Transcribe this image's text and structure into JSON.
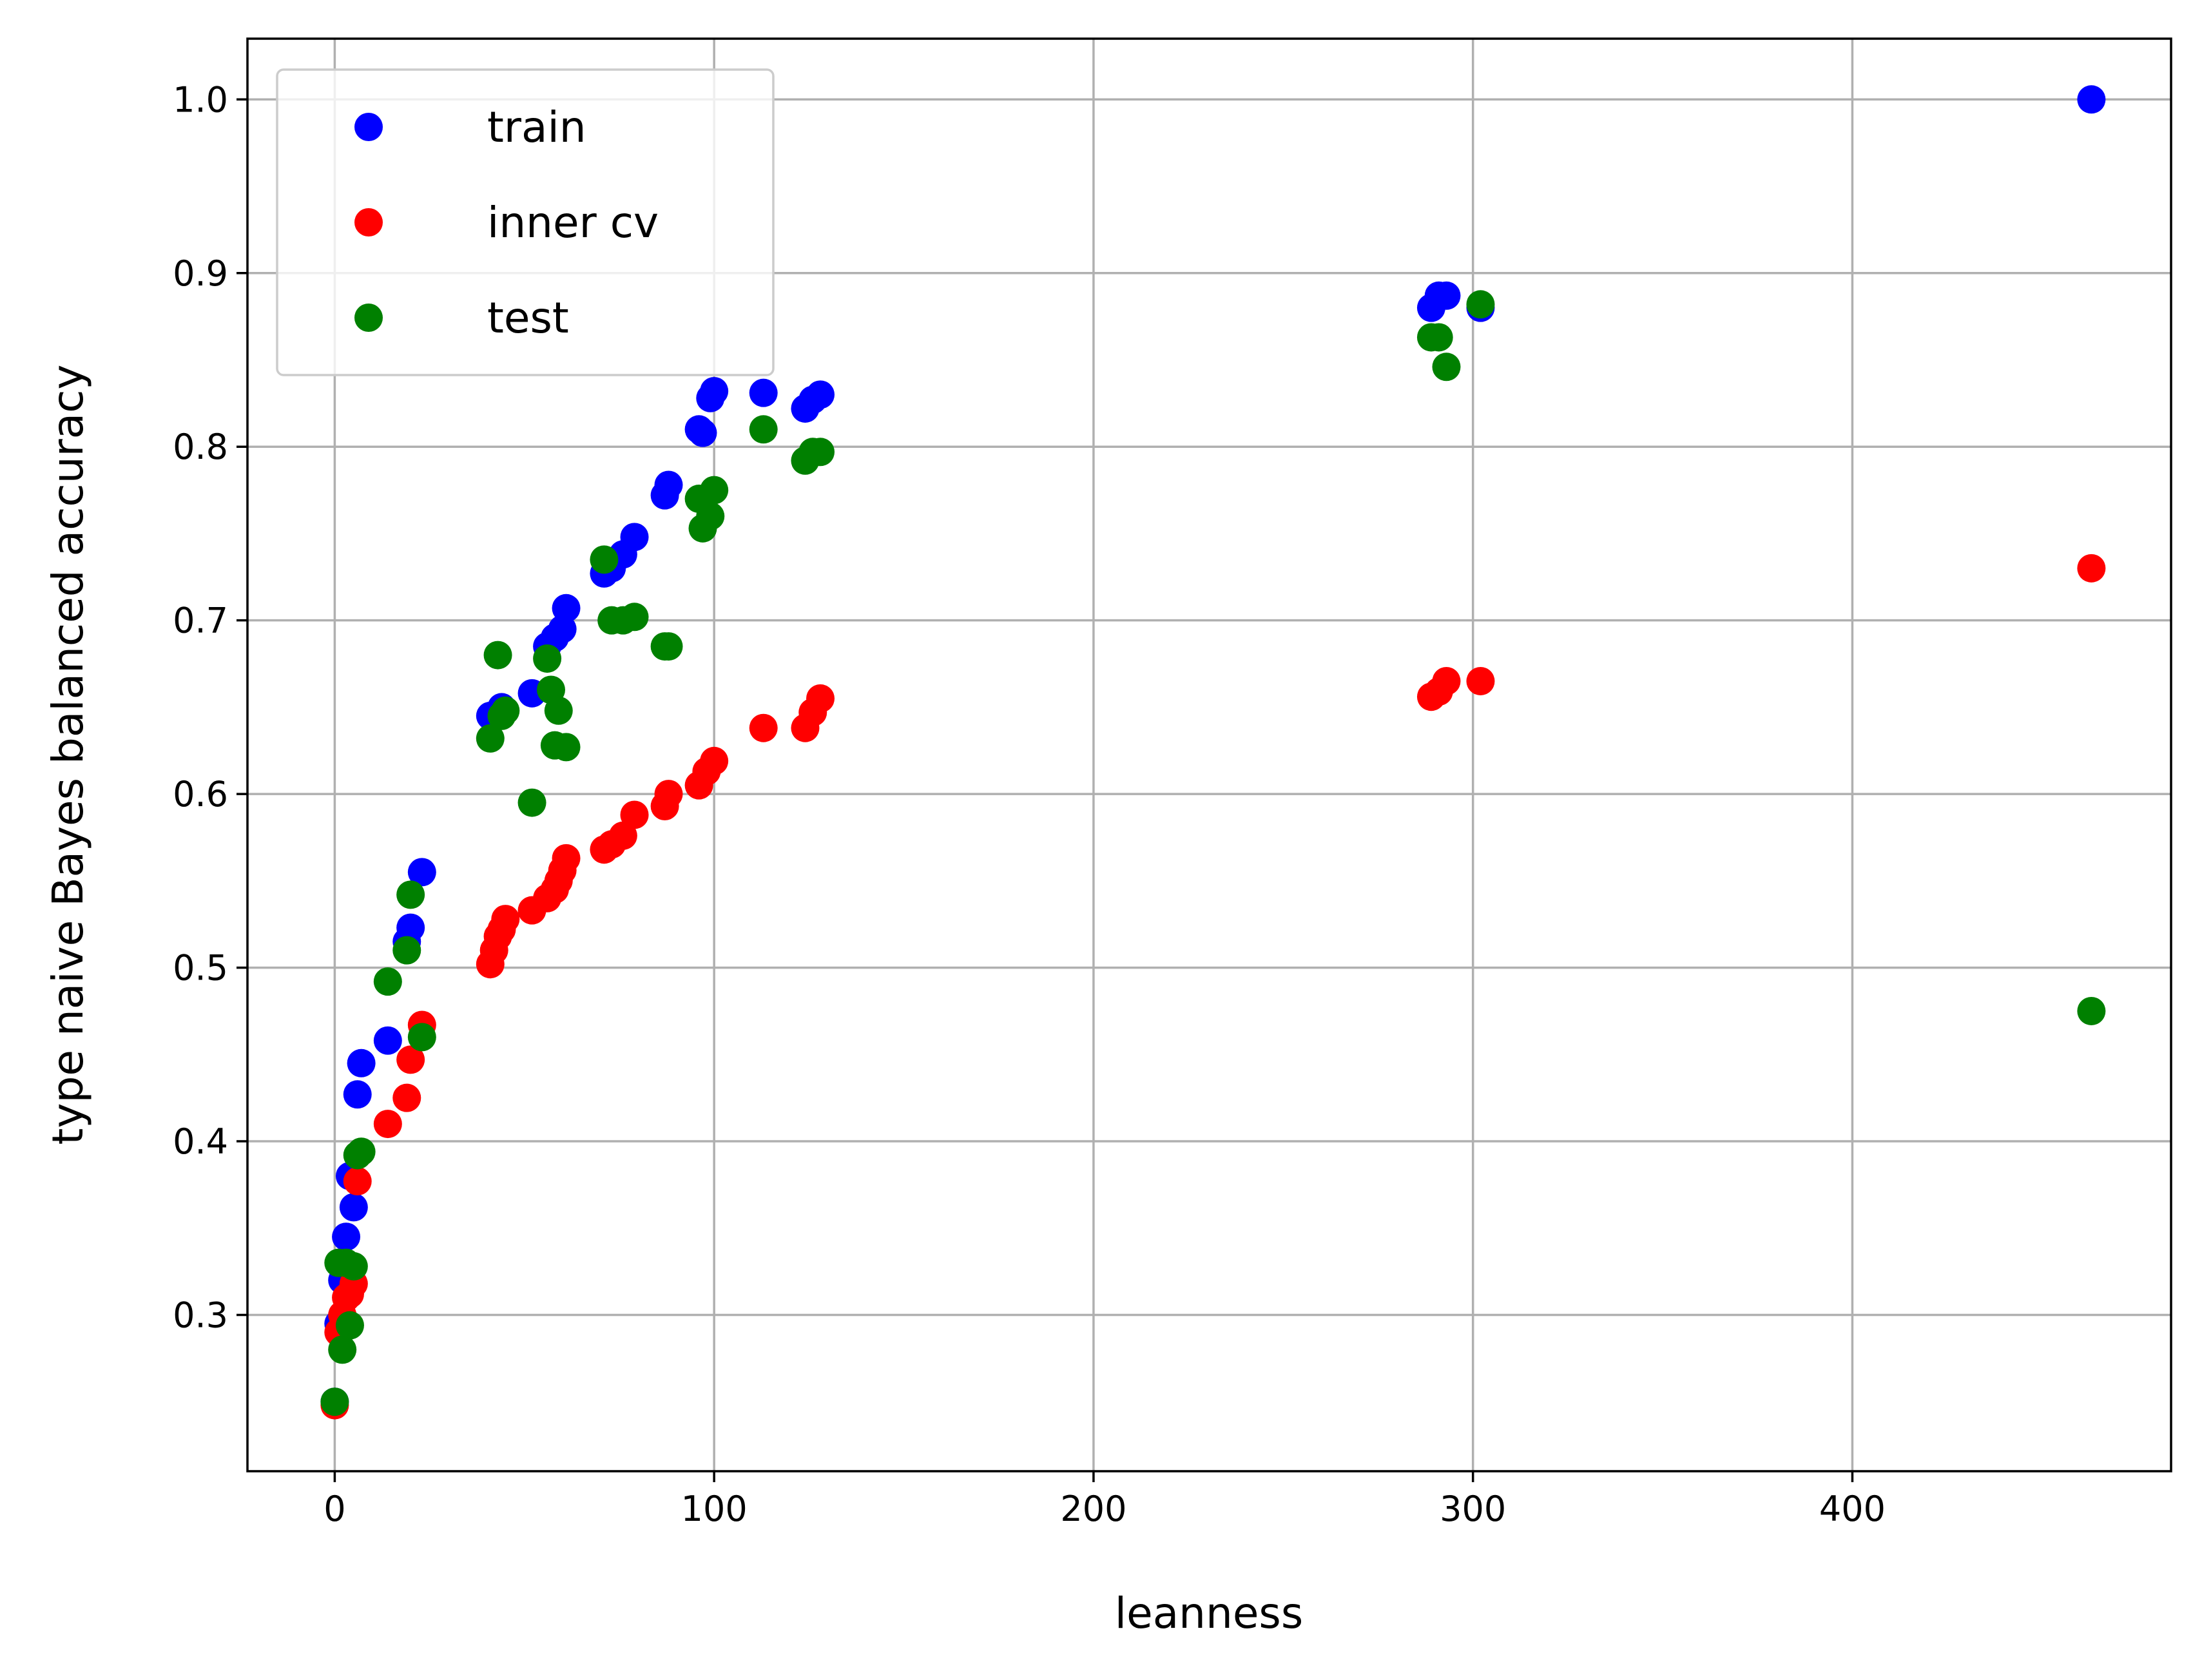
{
  "chart_data": {
    "type": "scatter",
    "xlabel": "leanness",
    "ylabel": "type naive Bayes balanced accuracy",
    "xlim": [
      -23,
      484
    ],
    "ylim": [
      0.21,
      1.035
    ],
    "xticks": [
      0,
      100,
      200,
      300,
      400
    ],
    "yticks": [
      0.3,
      0.4,
      0.5,
      0.6,
      0.7,
      0.8,
      0.9,
      1.0
    ],
    "xtick_labels": [
      "0",
      "100",
      "200",
      "300",
      "400"
    ],
    "ytick_labels": [
      "0.3",
      "0.4",
      "0.5",
      "0.6",
      "0.7",
      "0.8",
      "0.9",
      "1.0"
    ],
    "grid": true,
    "legend_position": "top-left",
    "series": [
      {
        "name": "train",
        "color": "#0000ff",
        "points": [
          [
            0,
            0.25
          ],
          [
            1,
            0.295
          ],
          [
            2,
            0.32
          ],
          [
            3,
            0.345
          ],
          [
            4,
            0.38
          ],
          [
            5,
            0.362
          ],
          [
            6,
            0.427
          ],
          [
            7,
            0.445
          ],
          [
            14,
            0.458
          ],
          [
            19,
            0.515
          ],
          [
            20,
            0.523
          ],
          [
            23,
            0.555
          ],
          [
            41,
            0.645
          ],
          [
            44,
            0.65
          ],
          [
            52,
            0.658
          ],
          [
            56,
            0.685
          ],
          [
            58,
            0.69
          ],
          [
            60,
            0.695
          ],
          [
            61,
            0.707
          ],
          [
            71,
            0.727
          ],
          [
            73,
            0.73
          ],
          [
            76,
            0.738
          ],
          [
            79,
            0.748
          ],
          [
            87,
            0.772
          ],
          [
            88,
            0.778
          ],
          [
            96,
            0.81
          ],
          [
            97,
            0.808
          ],
          [
            99,
            0.828
          ],
          [
            100,
            0.832
          ],
          [
            113,
            0.831
          ],
          [
            124,
            0.822
          ],
          [
            126,
            0.827
          ],
          [
            128,
            0.83
          ],
          [
            289,
            0.88
          ],
          [
            291,
            0.887
          ],
          [
            293,
            0.887
          ],
          [
            302,
            0.88
          ],
          [
            463,
            1.0
          ]
        ]
      },
      {
        "name": "inner cv",
        "color": "#ff0000",
        "points": [
          [
            0,
            0.248
          ],
          [
            1,
            0.29
          ],
          [
            2,
            0.3
          ],
          [
            3,
            0.31
          ],
          [
            4,
            0.312
          ],
          [
            5,
            0.318
          ],
          [
            6,
            0.377
          ],
          [
            14,
            0.41
          ],
          [
            19,
            0.425
          ],
          [
            20,
            0.447
          ],
          [
            23,
            0.467
          ],
          [
            41,
            0.502
          ],
          [
            42,
            0.51
          ],
          [
            43,
            0.518
          ],
          [
            44,
            0.522
          ],
          [
            45,
            0.528
          ],
          [
            52,
            0.533
          ],
          [
            56,
            0.54
          ],
          [
            58,
            0.545
          ],
          [
            59,
            0.55
          ],
          [
            60,
            0.556
          ],
          [
            61,
            0.563
          ],
          [
            71,
            0.568
          ],
          [
            73,
            0.571
          ],
          [
            76,
            0.576
          ],
          [
            79,
            0.588
          ],
          [
            87,
            0.593
          ],
          [
            88,
            0.6
          ],
          [
            96,
            0.605
          ],
          [
            98,
            0.613
          ],
          [
            100,
            0.619
          ],
          [
            113,
            0.638
          ],
          [
            124,
            0.638
          ],
          [
            126,
            0.647
          ],
          [
            128,
            0.655
          ],
          [
            289,
            0.656
          ],
          [
            291,
            0.659
          ],
          [
            293,
            0.665
          ],
          [
            302,
            0.665
          ],
          [
            463,
            0.73
          ]
        ]
      },
      {
        "name": "test",
        "color": "#008000",
        "points": [
          [
            0,
            0.25
          ],
          [
            1,
            0.33
          ],
          [
            2,
            0.28
          ],
          [
            3,
            0.33
          ],
          [
            4,
            0.294
          ],
          [
            5,
            0.328
          ],
          [
            6,
            0.392
          ],
          [
            7,
            0.394
          ],
          [
            14,
            0.492
          ],
          [
            19,
            0.51
          ],
          [
            20,
            0.542
          ],
          [
            23,
            0.46
          ],
          [
            41,
            0.632
          ],
          [
            43,
            0.68
          ],
          [
            44,
            0.645
          ],
          [
            45,
            0.648
          ],
          [
            52,
            0.595
          ],
          [
            56,
            0.678
          ],
          [
            57,
            0.66
          ],
          [
            58,
            0.628
          ],
          [
            59,
            0.648
          ],
          [
            61,
            0.627
          ],
          [
            71,
            0.735
          ],
          [
            73,
            0.7
          ],
          [
            76,
            0.7
          ],
          [
            79,
            0.702
          ],
          [
            87,
            0.685
          ],
          [
            88,
            0.685
          ],
          [
            96,
            0.77
          ],
          [
            97,
            0.753
          ],
          [
            99,
            0.76
          ],
          [
            100,
            0.775
          ],
          [
            113,
            0.81
          ],
          [
            124,
            0.792
          ],
          [
            126,
            0.797
          ],
          [
            128,
            0.797
          ],
          [
            289,
            0.863
          ],
          [
            291,
            0.863
          ],
          [
            293,
            0.846
          ],
          [
            302,
            0.882
          ],
          [
            463,
            0.475
          ]
        ]
      }
    ]
  }
}
